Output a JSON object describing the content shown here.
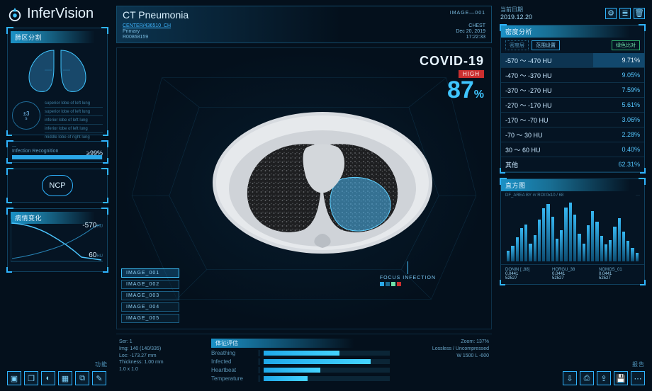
{
  "brand": {
    "name": "InferVision"
  },
  "left": {
    "lungs_panel_title": "肺区分割",
    "ring_value": "±3",
    "ring_unit": "s",
    "mini_lines": [
      "superior lobe of left lung",
      "superior lobe of left lung",
      "inferior lobe of left lung",
      "inferior lobe of left lung",
      "middle lobe of right lung"
    ],
    "infection_label": "Infection Recognition",
    "infection_sub": "—",
    "infection_pct": "≥99%",
    "ncp_label": "NCP",
    "chart_panel_title": "病情变化",
    "chart_y1": "-570",
    "chart_y1_unit": "HU",
    "chart_y2": "60",
    "chart_y2_unit": "HU",
    "footer_tag": "功能"
  },
  "center": {
    "title": "CT Pneumonia",
    "image_tag": "IMAGE—001",
    "meta": {
      "center": "CENTER/436510_CH",
      "primary": "Primary",
      "rec_id": "R00868159",
      "modality": "CHEST",
      "date": "Dec 20, 2019",
      "time": "17:22:33"
    },
    "score": {
      "diagnosis": "COVID-19",
      "risk": "HIGH",
      "percent": "87",
      "percent_unit": "%"
    },
    "image_list": [
      "IMAGE_001",
      "IMAGE_002",
      "IMAGE_003",
      "IMAGE_004",
      "IMAGE_005"
    ],
    "focus_label": "FOCUS INFECTION",
    "focus_chips": [
      "#2aa7e8",
      "#1b6a91",
      "#6fe0a8",
      "#cc2f2f"
    ],
    "vitals_title": "体征评估",
    "vitals": [
      {
        "label": "Breathing",
        "pct": 60
      },
      {
        "label": "Infected",
        "pct": 85
      },
      {
        "label": "Heartbeat",
        "pct": 45
      },
      {
        "label": "Temperature",
        "pct": 35
      }
    ],
    "bottom_left": {
      "ser": "Ser: 1",
      "img": "Img: 140 (140/335)",
      "loc": "Loc: -173.27 mm",
      "thk": "Thickness: 1.00 mm",
      "pix": "1.0 x 1.0"
    },
    "bottom_right": {
      "zoom": "Zoom: 137%",
      "comp": "Lossless / Uncompressed",
      "wl": "W 1500 L -600"
    }
  },
  "right": {
    "date_label": "当前日期",
    "date_value": "2019.12.20",
    "icons": [
      "gear",
      "list",
      "trash"
    ],
    "density_title": "密度分析",
    "tab_left_a": "密度层",
    "tab_left_b": "范围设置",
    "tab_right": "绿色比对",
    "density_table": [
      {
        "range": "-570 ～ -470 HU",
        "pct": "9.71%",
        "hl": true
      },
      {
        "range": "-470 ～ -370 HU",
        "pct": "9.05%"
      },
      {
        "range": "-370 ～ -270 HU",
        "pct": "7.59%"
      },
      {
        "range": "-270 ～ -170 HU",
        "pct": "5.61%"
      },
      {
        "range": "-170 ～ -70 HU",
        "pct": "3.06%"
      },
      {
        "range": "-70 ～ 30 HU",
        "pct": "2.28%"
      },
      {
        "range": "30 ～ 60 HU",
        "pct": "0.40%"
      },
      {
        "range": "其他",
        "pct": "62.31%"
      }
    ],
    "hist_title": "直方图",
    "hist_sub": "DF_AREA BY #/ ROI:0x10 / 68",
    "hist_values": [
      18,
      26,
      40,
      55,
      62,
      30,
      44,
      70,
      88,
      96,
      74,
      38,
      52,
      90,
      98,
      78,
      46,
      30,
      60,
      84,
      66,
      42,
      28,
      36,
      58,
      72,
      50,
      34,
      22,
      14
    ],
    "hist_color": "#36b7f2",
    "legend": [
      {
        "k": "DONIN [:,88]",
        "n": "0.0441"
      },
      {
        "k": "HORGU_38",
        "n": "0.0441"
      },
      {
        "k": "NOMOS_01",
        "n": "0.0441"
      }
    ],
    "legend2": [
      {
        "k": "",
        "n": "52527"
      },
      {
        "k": "",
        "n": "52527"
      },
      {
        "k": "",
        "n": "52527"
      }
    ],
    "footer_tag": "报告"
  }
}
